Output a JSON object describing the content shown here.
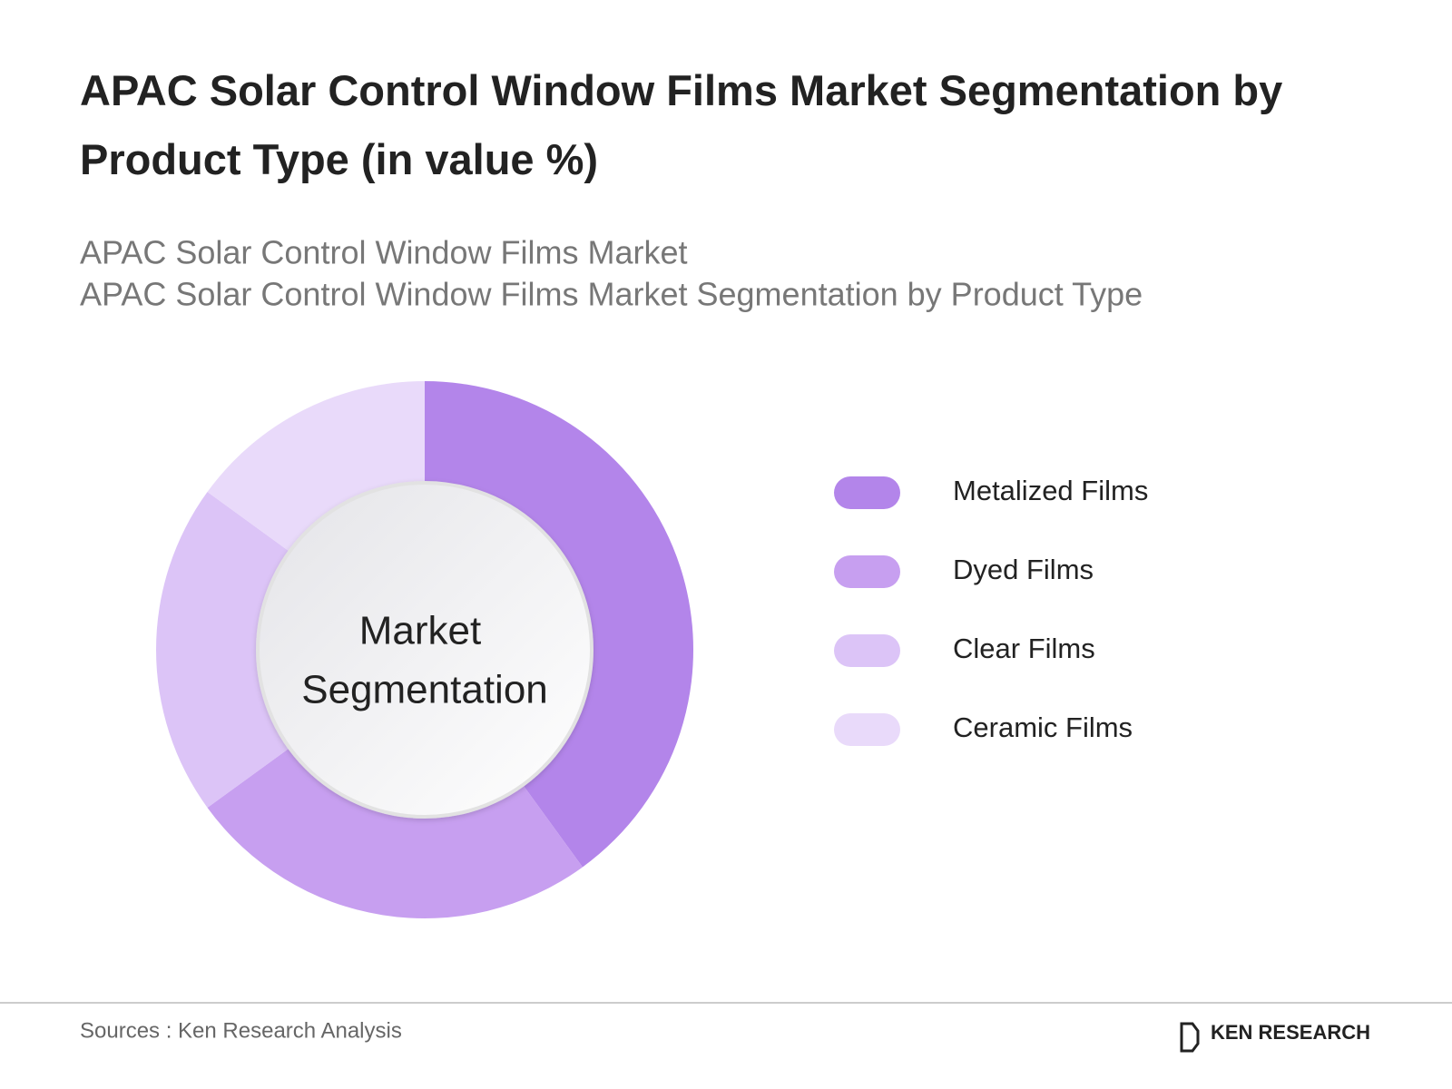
{
  "chart_data": {
    "type": "donut",
    "title": "APAC Solar Control Window Films Market Segmentation by Product Type (in value %)",
    "subtitles": [
      "APAC Solar Control Window Films Market",
      "APAC Solar Control Window Films Market Segmentation by Product Type"
    ],
    "center_label": [
      "Market",
      "Segmentation"
    ],
    "categories": [
      "Metalized Films",
      "Dyed Films",
      "Clear Films",
      "Ceramic Films"
    ],
    "values": [
      40,
      25,
      20,
      15
    ],
    "colors": [
      "#b385ea",
      "#c79ff0",
      "#dcc4f7",
      "#e9dafa"
    ],
    "source": "Sources : Ken Research Analysis",
    "brand": "KEN RESEARCH"
  }
}
